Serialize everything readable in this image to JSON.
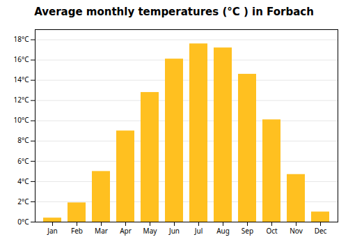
{
  "chart_data": {
    "type": "bar",
    "title": "Average monthly temperatures (°C ) in Forbach",
    "categories": [
      "Jan",
      "Feb",
      "Mar",
      "Apr",
      "May",
      "Jun",
      "Jul",
      "Aug",
      "Sep",
      "Oct",
      "Nov",
      "Dec"
    ],
    "values": [
      0.4,
      1.9,
      5.0,
      9.0,
      12.8,
      16.1,
      17.6,
      17.2,
      14.6,
      10.1,
      4.7,
      1.0
    ],
    "color": "#FFC020",
    "ylim": [
      0,
      19
    ],
    "yticks": [
      {
        "value": 0,
        "label": "0°C"
      },
      {
        "value": 2,
        "label": "2°C"
      },
      {
        "value": 4,
        "label": "4°C"
      },
      {
        "value": 6,
        "label": "6°C"
      },
      {
        "value": 8,
        "label": "8°C"
      },
      {
        "value": 10,
        "label": "10°C"
      },
      {
        "value": 12,
        "label": "12°C"
      },
      {
        "value": 14,
        "label": "14°C"
      },
      {
        "value": 16,
        "label": "16°C"
      },
      {
        "value": 18,
        "label": "18°C"
      }
    ],
    "grid": true
  }
}
